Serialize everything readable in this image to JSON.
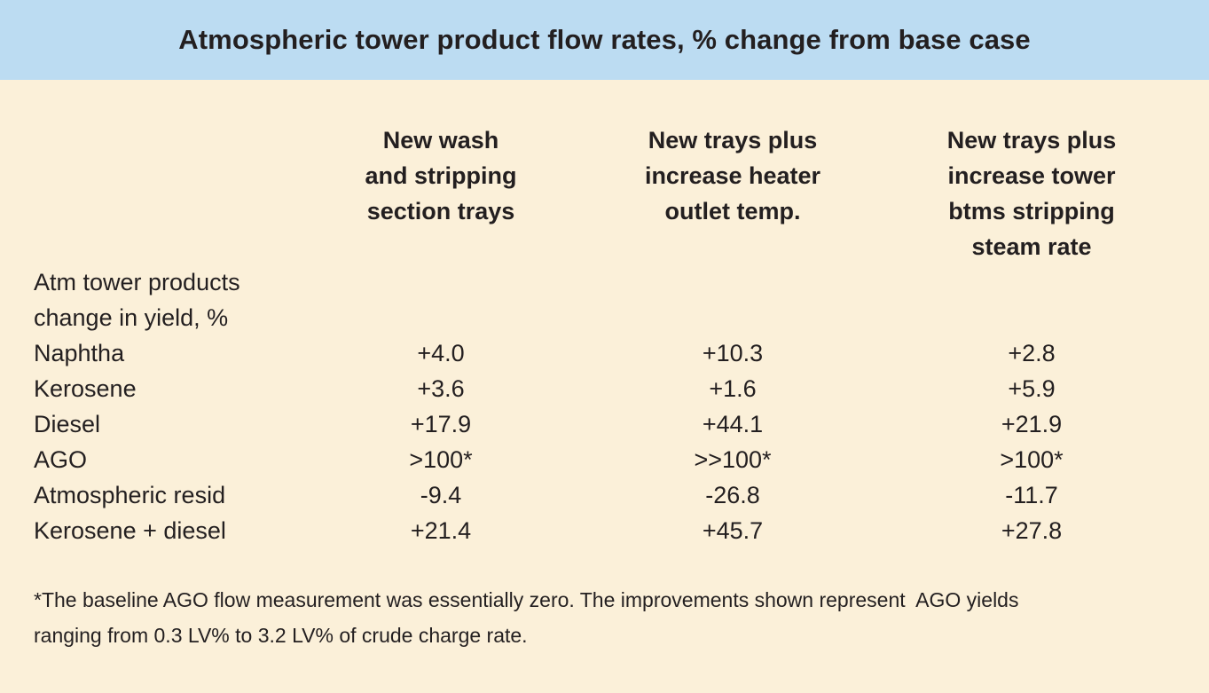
{
  "title": "Atmospheric tower product flow rates, % change from base case",
  "columns": [
    [
      "New wash",
      "and stripping",
      "section trays"
    ],
    [
      "New trays plus",
      "increase heater",
      "outlet temp."
    ],
    [
      "New trays plus",
      "increase tower",
      "btms stripping",
      "steam rate"
    ]
  ],
  "section_label": [
    "Atm tower products",
    "change in yield, %"
  ],
  "rows": [
    {
      "label": "Naphtha",
      "values": [
        "+4.0",
        "+10.3",
        "+2.8"
      ]
    },
    {
      "label": "Kerosene",
      "values": [
        "+3.6",
        "+1.6",
        "+5.9"
      ]
    },
    {
      "label": "Diesel",
      "values": [
        "+17.9",
        "+44.1",
        "+21.9"
      ]
    },
    {
      "label": "AGO",
      "values": [
        ">100*",
        ">>100*",
        ">100*"
      ]
    },
    {
      "label": "Atmospheric resid",
      "values": [
        "-9.4",
        "-26.8",
        "-11.7"
      ]
    },
    {
      "label": "Kerosene + diesel",
      "values": [
        "+21.4",
        "+45.7",
        "+27.8"
      ]
    }
  ],
  "footnote": [
    "*The baseline AGO flow measurement was essentially zero. The improvements shown represent  AGO yields",
    "ranging from 0.3 LV% to 3.2 LV% of crude charge rate."
  ]
}
